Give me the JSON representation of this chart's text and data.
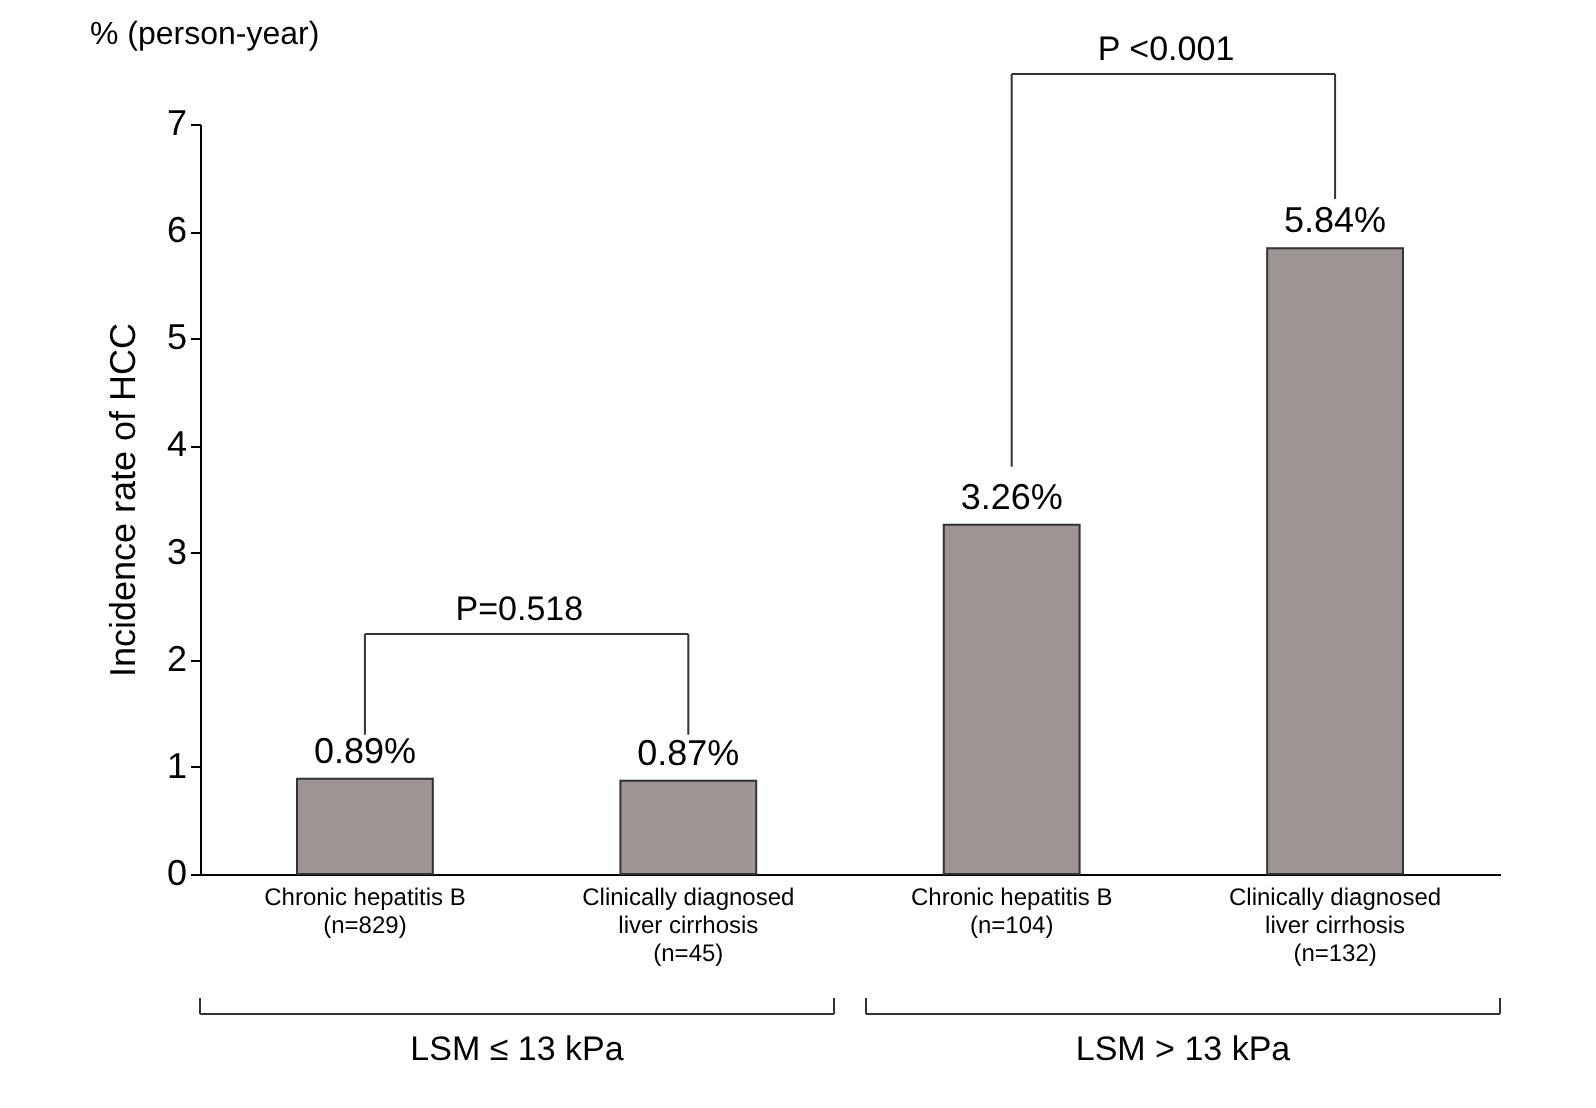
{
  "chart_data": {
    "type": "bar",
    "ylabel": "Incidence rate of  HCC",
    "categories": [
      "Chronic hepatitis B\n(n=829)",
      "Clinically diagnosed\nliver cirrhosis\n(n=45)",
      "Chronic hepatitis B\n(n=104)",
      "Clinically diagnosed\nliver cirrhosis\n(n=132)"
    ],
    "values": [
      0.89,
      0.87,
      3.26,
      5.84
    ],
    "value_labels": [
      "0.89%",
      "0.87%",
      "3.26%",
      "5.84%"
    ],
    "color": "#9c9593",
    "ylim": [
      0,
      7
    ],
    "yticks": [
      0,
      1,
      2,
      3,
      4,
      5,
      6,
      7
    ],
    "grid": false,
    "annotations": [
      "% (person-year)",
      "P=0.518",
      "P <0.001",
      "LSM ≤ 13 kPa",
      "LSM > 13 kPa"
    ]
  }
}
